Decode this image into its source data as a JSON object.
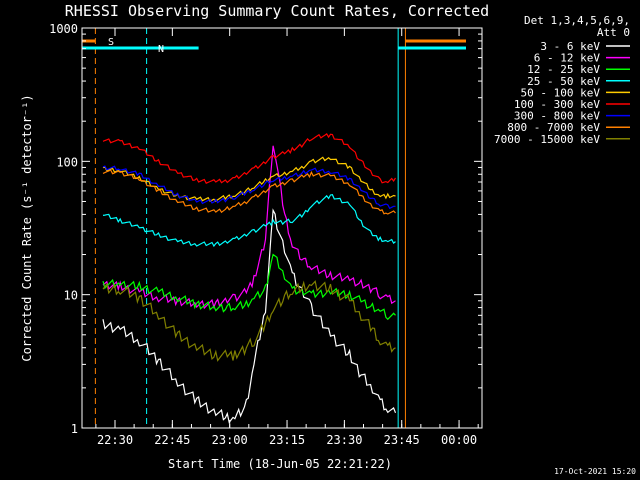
{
  "chart_data": {
    "type": "line",
    "title": "RHESSI Observing Summary Count Rates, Corrected",
    "xlabel": "Start Time (18-Jun-05 22:21:22)",
    "ylabel": "Corrected Count Rate (s⁻¹ detector⁻¹)",
    "y_scale": "log",
    "ylim": [
      1,
      1000
    ],
    "xlim": [
      "22:21:22",
      "00:06:00"
    ],
    "x_ticks": [
      "22:30",
      "22:45",
      "23:00",
      "23:15",
      "23:30",
      "23:45",
      "00:00"
    ],
    "x_tick_minutes": [
      8.633,
      23.633,
      38.633,
      53.633,
      68.633,
      83.633,
      98.633
    ],
    "y_ticks": [
      "1",
      "10",
      "100",
      "1000"
    ],
    "y_tick_values": [
      1,
      10,
      100,
      1000
    ],
    "x_minutes_range": [
      0,
      104.633
    ],
    "grid": false,
    "legend_position": "right",
    "legend_header": [
      "Det 1,3,4,5,6,9,",
      "Att 0"
    ],
    "markers": [
      {
        "label": "S",
        "color": "#ff8000",
        "start": 3.5,
        "end": 84.6
      },
      {
        "label": "N",
        "color": "#00ffff",
        "start": 16.9,
        "end": 82.7
      }
    ],
    "x_minutes": [
      5.5,
      10,
      15,
      20,
      25,
      30,
      35,
      38,
      40,
      43,
      45,
      48,
      50,
      53,
      55,
      58,
      60,
      65,
      70,
      73,
      76,
      78,
      80,
      82
    ],
    "series": [
      {
        "name": "3 - 6 keV",
        "color": "#ffffff",
        "values": [
          6,
          5.5,
          4.5,
          3.2,
          2.2,
          1.6,
          1.3,
          1.2,
          1.2,
          1.5,
          3,
          8,
          42,
          22,
          14,
          10,
          8,
          5,
          3.5,
          2.5,
          2,
          1.6,
          1.4,
          1.3
        ]
      },
      {
        "name": "6 - 12 keV",
        "color": "#ff00ff",
        "values": [
          12,
          11.5,
          10.5,
          9.5,
          9,
          8.5,
          8.5,
          9,
          9.5,
          10.5,
          13,
          26,
          140,
          40,
          24,
          18,
          16,
          14,
          13,
          12,
          11,
          10,
          9.5,
          9
        ]
      },
      {
        "name": "12 - 25 keV",
        "color": "#00ff00",
        "values": [
          12,
          12,
          11.5,
          10.5,
          9.5,
          8.5,
          8,
          8,
          8,
          8.5,
          9.5,
          11,
          20,
          14,
          11,
          10.5,
          10,
          10.5,
          10,
          9,
          8,
          7.5,
          7,
          7
        ]
      },
      {
        "name": "25 - 50 keV",
        "color": "#00ffff",
        "values": [
          40,
          36,
          32,
          28,
          25,
          24,
          24,
          25,
          26,
          28,
          30,
          33,
          35,
          35,
          36,
          40,
          47,
          55,
          48,
          35,
          28,
          26,
          25,
          25
        ]
      },
      {
        "name": "50 - 100 keV",
        "color": "#ffcc00",
        "values": [
          88,
          85,
          75,
          62,
          55,
          52,
          52,
          54,
          56,
          60,
          64,
          72,
          78,
          80,
          84,
          92,
          100,
          106,
          90,
          72,
          60,
          55,
          55,
          55
        ]
      },
      {
        "name": "100 - 300 keV",
        "color": "#ff0000",
        "values": [
          145,
          140,
          125,
          100,
          82,
          72,
          70,
          72,
          75,
          82,
          88,
          98,
          108,
          115,
          122,
          135,
          150,
          158,
          130,
          100,
          80,
          72,
          70,
          75
        ]
      },
      {
        "name": "300 - 800 keV",
        "color": "#0000ff",
        "values": [
          90,
          88,
          80,
          66,
          56,
          50,
          50,
          52,
          54,
          58,
          62,
          68,
          72,
          75,
          78,
          82,
          86,
          84,
          74,
          62,
          52,
          47,
          46,
          46
        ]
      },
      {
        "name": "800 - 7000 keV",
        "color": "#ff8000",
        "values": [
          84,
          82,
          74,
          60,
          50,
          44,
          42,
          44,
          46,
          50,
          54,
          60,
          65,
          68,
          72,
          77,
          80,
          78,
          68,
          55,
          46,
          42,
          41,
          41
        ]
      },
      {
        "name": "7000 - 15000 keV",
        "color": "#808000",
        "values": [
          11,
          11,
          9.5,
          7,
          5,
          4,
          3.5,
          3.5,
          3.5,
          4,
          4.5,
          6,
          8,
          9.5,
          10.5,
          11.5,
          12,
          11,
          9,
          7,
          5.5,
          4.5,
          4,
          4
        ]
      }
    ]
  },
  "timestamp": "17-Oct-2021 15:20"
}
